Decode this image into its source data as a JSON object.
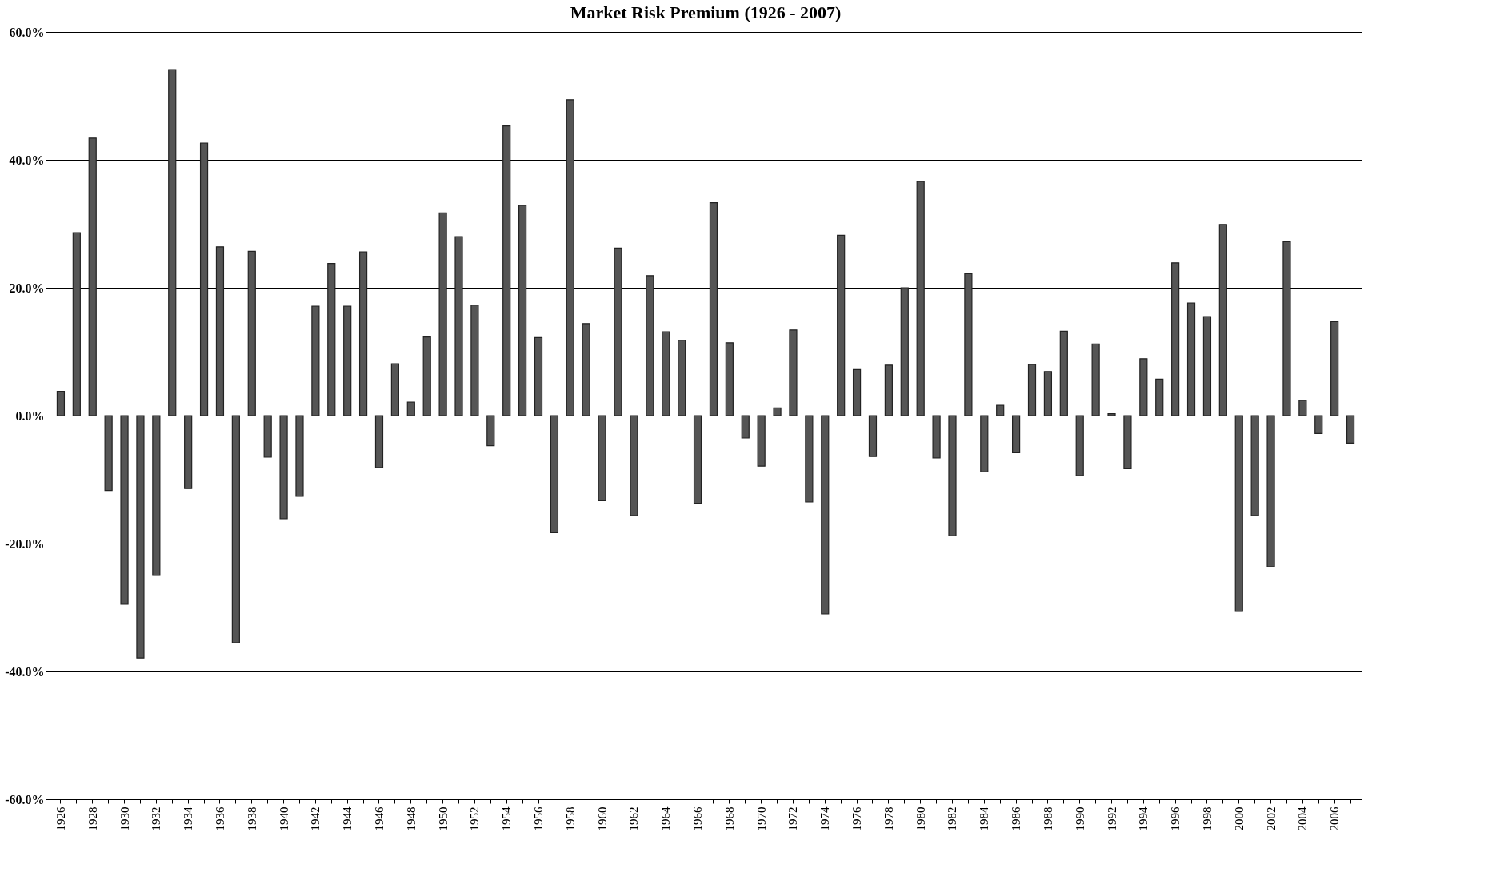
{
  "chart_data": {
    "type": "bar",
    "title": "Market Risk Premium (1926 - 2007)",
    "categories": [
      "1926",
      null,
      "1928",
      null,
      "1930",
      null,
      "1932",
      null,
      "1934",
      null,
      "1936",
      null,
      "1938",
      null,
      "1940",
      null,
      "1942",
      null,
      "1944",
      null,
      "1946",
      null,
      "1948",
      null,
      "1950",
      null,
      "1952",
      null,
      "1954",
      null,
      "1956",
      null,
      "1958",
      null,
      "1960",
      null,
      "1962",
      null,
      "1964",
      null,
      "1966",
      null,
      "1968",
      null,
      "1970",
      null,
      "1972",
      null,
      "1974",
      null,
      "1976",
      null,
      "1978",
      null,
      "1980",
      null,
      "1982",
      null,
      "1984",
      null,
      "1986",
      null,
      "1988",
      null,
      "1990",
      null,
      "1992",
      null,
      "1994",
      null,
      "1996",
      null,
      "1998",
      null,
      "2000",
      null,
      "2002",
      null,
      "2004",
      null,
      "2006",
      null
    ],
    "values": [
      3.8,
      28.6,
      43.4,
      -11.7,
      -29.5,
      -37.9,
      -25.0,
      54.1,
      -11.4,
      42.6,
      26.4,
      -35.5,
      25.7,
      -6.5,
      -16.1,
      -12.6,
      17.1,
      23.8,
      17.1,
      25.6,
      -8.1,
      8.1,
      2.1,
      12.3,
      31.7,
      28.0,
      17.3,
      -4.7,
      45.3,
      32.9,
      12.2,
      -18.3,
      49.4,
      14.4,
      -13.3,
      26.2,
      -15.6,
      21.9,
      13.1,
      11.8,
      -13.7,
      33.3,
      11.4,
      -3.5,
      -7.9,
      1.2,
      13.4,
      -13.5,
      -31.0,
      28.2,
      7.2,
      -6.4,
      7.9,
      20.0,
      36.6,
      -6.6,
      -18.8,
      22.2,
      -8.8,
      1.6,
      -5.8,
      8.0,
      6.9,
      13.2,
      -9.4,
      11.2,
      0.3,
      -8.3,
      8.9,
      5.7,
      23.9,
      17.6,
      15.5,
      29.9,
      -30.6,
      -15.6,
      -23.6,
      27.2,
      2.4,
      -2.8,
      14.7,
      -4.3
    ],
    "color": "#555555",
    "ylim": [
      -60,
      60
    ],
    "yticks": [
      {
        "value": -60,
        "label": "-60.0%"
      },
      {
        "value": -40,
        "label": "-40.0%"
      },
      {
        "value": -20,
        "label": "-20.0%"
      },
      {
        "value": 0,
        "label": "0.0%"
      },
      {
        "value": 20,
        "label": "20.0%"
      },
      {
        "value": 40,
        "label": "40.0%"
      },
      {
        "value": 60,
        "label": "60.0%"
      }
    ],
    "grid": "y"
  }
}
